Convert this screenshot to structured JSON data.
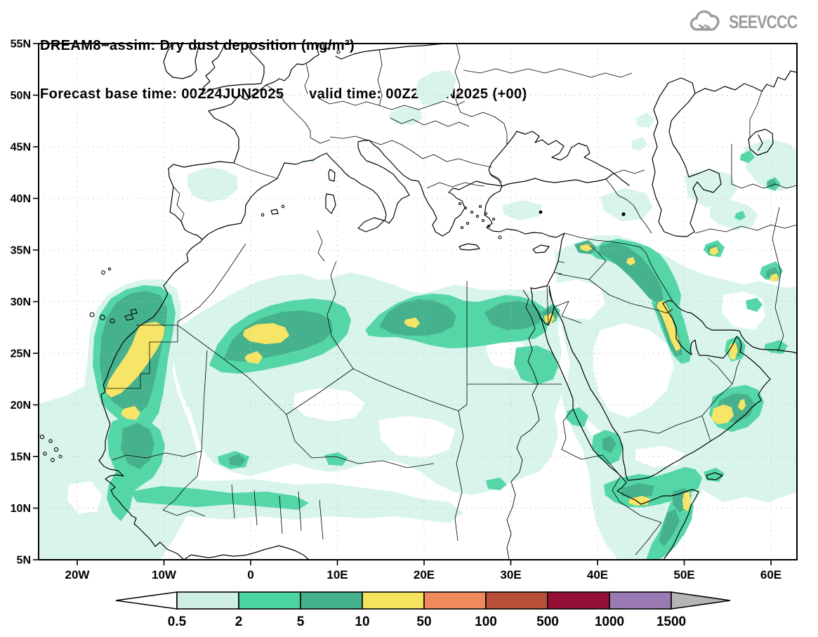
{
  "header": {
    "line1": "DREAM8−assim: Dry dust deposition (mg/m²)",
    "line2": "Forecast base time: 00Z24JUN2025      valid time: 00Z24JUN2025 (+00)"
  },
  "logo": {
    "text": "SEEVCCC"
  },
  "axes": {
    "lat_labels": [
      "55N",
      "50N",
      "45N",
      "40N",
      "35N",
      "30N",
      "25N",
      "20N",
      "15N",
      "10N",
      "5N"
    ],
    "lon_labels": [
      "20W",
      "10W",
      "0",
      "10E",
      "20E",
      "30E",
      "40E",
      "50E",
      "60E"
    ]
  },
  "colorbar": {
    "values": [
      "0.5",
      "2",
      "5",
      "10",
      "50",
      "100",
      "500",
      "1000",
      "1500"
    ],
    "cell_colors": [
      "#cfeee4",
      "#4bd4a1",
      "#42b18c",
      "#f5e35f",
      "#ef8a5d",
      "#b94f39",
      "#951038",
      "#9b7ab4"
    ],
    "under_color": "#ffffff",
    "over_color": "#b5b5b5"
  },
  "map_legend": {
    "units": "mg/m²",
    "model": "DREAM8−assim",
    "variable": "Dry dust deposition",
    "forecast_base_time": "00Z24JUN2025",
    "valid_time": "00Z24JUN2025",
    "lead": "+00",
    "contour_levels": [
      0.5,
      2,
      5,
      10,
      50,
      100,
      500,
      1000,
      1500
    ],
    "fill_colors": {
      "level_0_5_to_2": "#d9f4ed",
      "level_2_to_5": "#55d6a7",
      "level_5_to_10": "#46b28d",
      "level_10_to_50": "#f6e567"
    }
  }
}
